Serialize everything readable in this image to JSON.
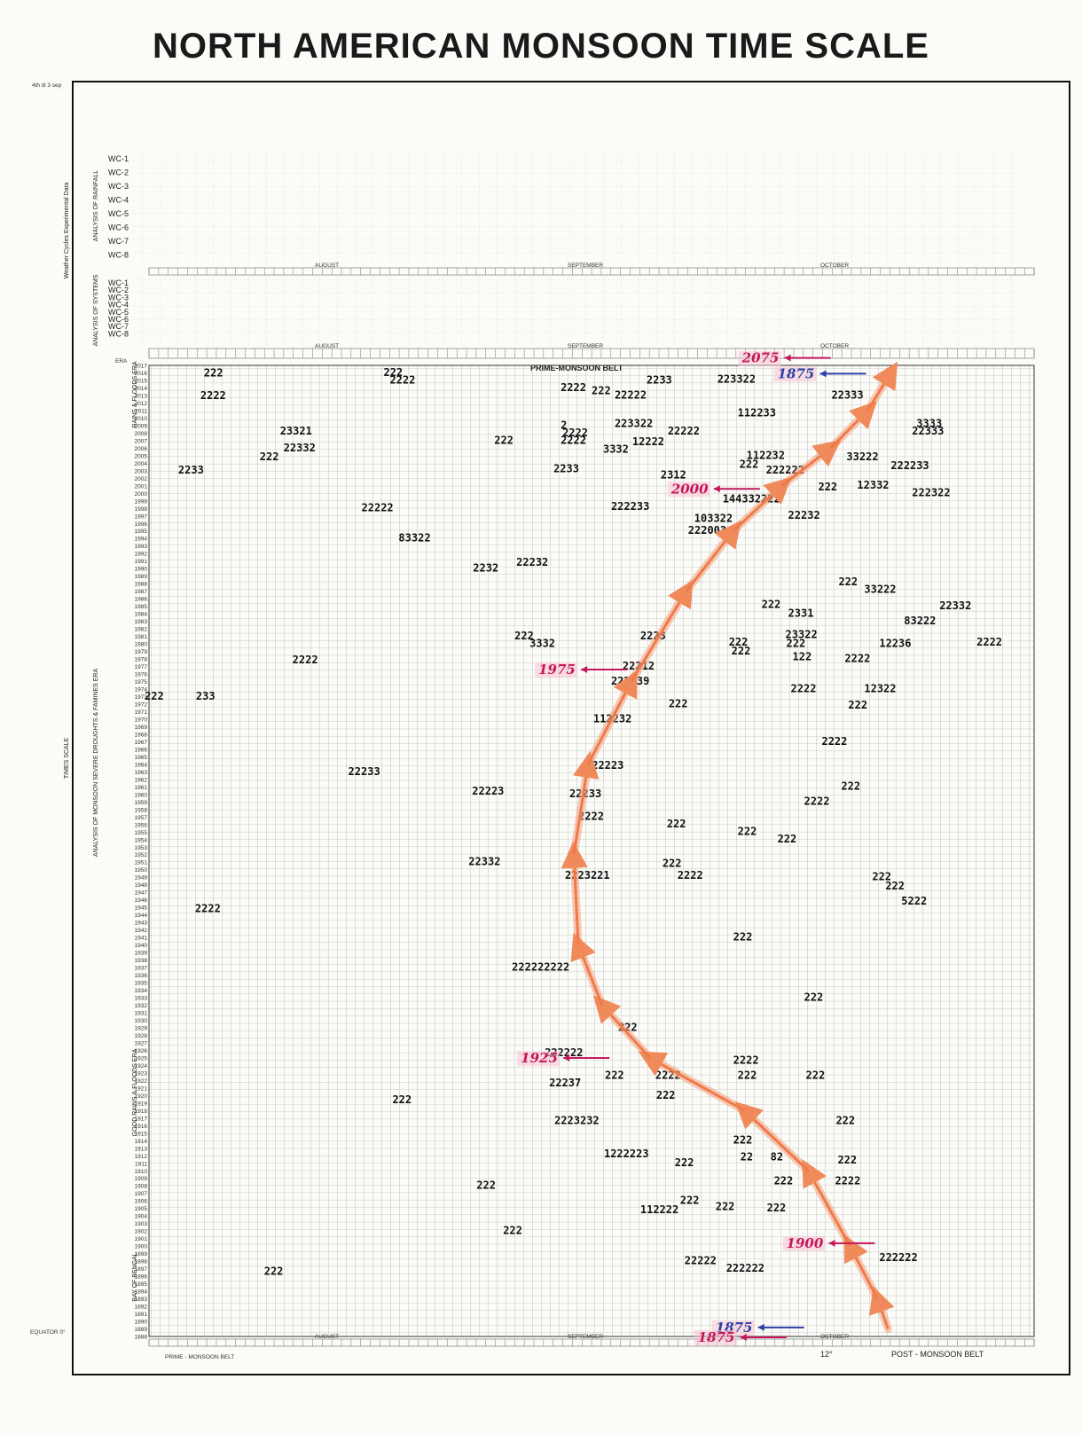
{
  "title": "NORTH AMERICAN MONSOON TIME SCALE",
  "corner_code": "4th til 3 sep",
  "axes": {
    "outer_left_label": "Weather Cycles Experimental Data",
    "times_scale_label": "TIMES SCALE",
    "rainfall_section_label": "ANALYSIS OF RAINFALL",
    "systems_section_label": "ANALYSIS OF SYSTEMS",
    "monsoon_section_label": "ANALYSIS OF MONSOON SEVERE DROUGHTS & FAMINES ERA",
    "good_rains_label": "GOOD RAINS & FLOODS ERA",
    "rains_floods_label": "RAINS & FLOODS ERA",
    "bay_label": "BAY OF BENGAL",
    "era_label": "ERA",
    "equator_label": "EQUATOR 0°",
    "weather_cycles": [
      "WC-1",
      "WC-2",
      "WC-3",
      "WC-4",
      "WC-5",
      "WC-6",
      "WC-7",
      "WC-8"
    ],
    "months": [
      "AUGUST",
      "SEPTEMBER",
      "OCTOBER"
    ],
    "bottom_left_label": "PRIME - MONSOON BELT",
    "bottom_right_label": "POST - MONSOON BELT",
    "top_band_label": "PRIME-MONSOON BELT",
    "bottom_degree": "12°"
  },
  "chart_data": {
    "type": "line",
    "title": "NORTH AMERICAN MONSOON TIME SCALE",
    "xlabel": "",
    "ylabel": "TIMES SCALE",
    "x_months": [
      "AUGUST",
      "SEPTEMBER",
      "OCTOBER"
    ],
    "ylim": [
      1888,
      2017
    ],
    "grid": true,
    "trend": [
      {
        "x": 0.835,
        "y": 1889
      },
      {
        "x": 0.823,
        "y": 1893
      },
      {
        "x": 0.792,
        "y": 1900
      },
      {
        "x": 0.745,
        "y": 1910
      },
      {
        "x": 0.673,
        "y": 1918
      },
      {
        "x": 0.566,
        "y": 1925
      },
      {
        "x": 0.512,
        "y": 1932
      },
      {
        "x": 0.485,
        "y": 1940
      },
      {
        "x": 0.48,
        "y": 1952
      },
      {
        "x": 0.496,
        "y": 1964
      },
      {
        "x": 0.545,
        "y": 1975
      },
      {
        "x": 0.607,
        "y": 1987
      },
      {
        "x": 0.66,
        "y": 1995
      },
      {
        "x": 0.715,
        "y": 2001
      },
      {
        "x": 0.77,
        "y": 2006
      },
      {
        "x": 0.812,
        "y": 2011
      },
      {
        "x": 0.838,
        "y": 2016
      }
    ],
    "year_markers": [
      {
        "label": "1875",
        "color": "#2a3fa8",
        "x": 0.64,
        "y": 1888.6
      },
      {
        "label": "1875",
        "color": "#c2185b",
        "x": 0.62,
        "y": 1887.3
      },
      {
        "label": "1900",
        "color": "#c2185b",
        "x": 0.72,
        "y": 1899.8
      },
      {
        "label": "1925",
        "color": "#c2185b",
        "x": 0.42,
        "y": 1924.4
      },
      {
        "label": "1975",
        "color": "#c2185b",
        "x": 0.44,
        "y": 1976.0
      },
      {
        "label": "2000",
        "color": "#c2185b",
        "x": 0.59,
        "y": 2000.0
      },
      {
        "label": "2075",
        "color": "#c2185b",
        "x": 0.67,
        "y": 2017.4
      },
      {
        "label": "1875",
        "color": "#2a3fa8",
        "x": 0.71,
        "y": 2015.3
      }
    ],
    "codes": [
      {
        "t": "222",
        "x": 0.062,
        "y": 2015.5
      },
      {
        "t": "2222",
        "x": 0.058,
        "y": 2012.5
      },
      {
        "t": "2222",
        "x": 0.272,
        "y": 2014.6
      },
      {
        "t": "222",
        "x": 0.265,
        "y": 2015.6
      },
      {
        "t": "2222",
        "x": 0.465,
        "y": 2013.6
      },
      {
        "t": "222",
        "x": 0.5,
        "y": 2013.2
      },
      {
        "t": "22222",
        "x": 0.526,
        "y": 2012.6
      },
      {
        "t": "2233",
        "x": 0.562,
        "y": 2014.6
      },
      {
        "t": "223322",
        "x": 0.642,
        "y": 2014.7
      },
      {
        "t": "22333",
        "x": 0.771,
        "y": 2012.6
      },
      {
        "t": "112233",
        "x": 0.665,
        "y": 2010.2
      },
      {
        "t": "223322",
        "x": 0.526,
        "y": 2008.8
      },
      {
        "t": "2",
        "x": 0.465,
        "y": 2008.6
      },
      {
        "t": "2222",
        "x": 0.467,
        "y": 2007.6
      },
      {
        "t": "2222",
        "x": 0.465,
        "y": 2006.6
      },
      {
        "t": "22222",
        "x": 0.586,
        "y": 2007.8
      },
      {
        "t": "12222",
        "x": 0.546,
        "y": 2006.4
      },
      {
        "t": "3332",
        "x": 0.513,
        "y": 2005.4
      },
      {
        "t": "23321",
        "x": 0.148,
        "y": 2007.8
      },
      {
        "t": "22332",
        "x": 0.152,
        "y": 2005.6
      },
      {
        "t": "222",
        "x": 0.125,
        "y": 2004.4
      },
      {
        "t": "222",
        "x": 0.39,
        "y": 2006.6
      },
      {
        "t": "2233",
        "x": 0.033,
        "y": 2002.6
      },
      {
        "t": "2233",
        "x": 0.457,
        "y": 2002.8
      },
      {
        "t": "3333",
        "x": 0.867,
        "y": 2008.8
      },
      {
        "t": "22333",
        "x": 0.862,
        "y": 2007.8
      },
      {
        "t": "112232",
        "x": 0.675,
        "y": 2004.6
      },
      {
        "t": "33222",
        "x": 0.788,
        "y": 2004.4
      },
      {
        "t": "222",
        "x": 0.667,
        "y": 2003.4
      },
      {
        "t": "222222",
        "x": 0.697,
        "y": 2002.6
      },
      {
        "t": "222233",
        "x": 0.838,
        "y": 2003.2
      },
      {
        "t": "2312",
        "x": 0.578,
        "y": 2002.0
      },
      {
        "t": "222",
        "x": 0.756,
        "y": 2000.4
      },
      {
        "t": "12332",
        "x": 0.8,
        "y": 2000.6
      },
      {
        "t": "222322",
        "x": 0.862,
        "y": 1999.6
      },
      {
        "t": "144332222",
        "x": 0.648,
        "y": 1998.8
      },
      {
        "t": "222233",
        "x": 0.522,
        "y": 1997.8
      },
      {
        "t": "22222",
        "x": 0.24,
        "y": 1997.6
      },
      {
        "t": "103322",
        "x": 0.616,
        "y": 1996.2
      },
      {
        "t": "222003",
        "x": 0.609,
        "y": 1994.6
      },
      {
        "t": "22232",
        "x": 0.722,
        "y": 1996.6
      },
      {
        "t": "83322",
        "x": 0.282,
        "y": 1993.6
      },
      {
        "t": "22232",
        "x": 0.415,
        "y": 1990.4
      },
      {
        "t": "2232",
        "x": 0.366,
        "y": 1989.6
      },
      {
        "t": "222",
        "x": 0.779,
        "y": 1987.8
      },
      {
        "t": "33222",
        "x": 0.808,
        "y": 1986.8
      },
      {
        "t": "22332",
        "x": 0.893,
        "y": 1984.6
      },
      {
        "t": "222",
        "x": 0.692,
        "y": 1984.8
      },
      {
        "t": "2331",
        "x": 0.722,
        "y": 1983.6
      },
      {
        "t": "83222",
        "x": 0.853,
        "y": 1982.6
      },
      {
        "t": "222",
        "x": 0.413,
        "y": 1980.6
      },
      {
        "t": "3332",
        "x": 0.43,
        "y": 1979.6
      },
      {
        "t": "2223",
        "x": 0.555,
        "y": 1980.6
      },
      {
        "t": "23322",
        "x": 0.719,
        "y": 1980.8
      },
      {
        "t": "222",
        "x": 0.655,
        "y": 1979.8
      },
      {
        "t": "222",
        "x": 0.72,
        "y": 1979.6
      },
      {
        "t": "12236",
        "x": 0.825,
        "y": 1979.6
      },
      {
        "t": "2222",
        "x": 0.935,
        "y": 1979.8
      },
      {
        "t": "222",
        "x": 0.658,
        "y": 1978.6
      },
      {
        "t": "122",
        "x": 0.727,
        "y": 1977.8
      },
      {
        "t": "2222",
        "x": 0.786,
        "y": 1977.6
      },
      {
        "t": "2222",
        "x": 0.162,
        "y": 1977.4
      },
      {
        "t": "22212",
        "x": 0.535,
        "y": 1976.6
      },
      {
        "t": "222239",
        "x": 0.522,
        "y": 1974.6
      },
      {
        "t": "222",
        "x": -0.005,
        "y": 1972.6
      },
      {
        "t": "233",
        "x": 0.053,
        "y": 1972.6
      },
      {
        "t": "2222",
        "x": 0.725,
        "y": 1973.6
      },
      {
        "t": "12322",
        "x": 0.808,
        "y": 1973.6
      },
      {
        "t": "222",
        "x": 0.587,
        "y": 1971.6
      },
      {
        "t": "222",
        "x": 0.79,
        "y": 1971.4
      },
      {
        "t": "112232",
        "x": 0.502,
        "y": 1969.6
      },
      {
        "t": "2222",
        "x": 0.76,
        "y": 1966.6
      },
      {
        "t": "122223",
        "x": 0.493,
        "y": 1963.4
      },
      {
        "t": "22233",
        "x": 0.225,
        "y": 1962.6
      },
      {
        "t": "22223",
        "x": 0.365,
        "y": 1960.0
      },
      {
        "t": "22233",
        "x": 0.475,
        "y": 1959.6
      },
      {
        "t": "222",
        "x": 0.782,
        "y": 1960.6
      },
      {
        "t": "2222",
        "x": 0.485,
        "y": 1956.6
      },
      {
        "t": "2222",
        "x": 0.74,
        "y": 1958.6
      },
      {
        "t": "222",
        "x": 0.585,
        "y": 1955.6
      },
      {
        "t": "222",
        "x": 0.665,
        "y": 1954.6
      },
      {
        "t": "222",
        "x": 0.71,
        "y": 1953.6
      },
      {
        "t": "22332",
        "x": 0.361,
        "y": 1950.6
      },
      {
        "t": "2223221",
        "x": 0.47,
        "y": 1948.8
      },
      {
        "t": "222",
        "x": 0.58,
        "y": 1950.4
      },
      {
        "t": "2222",
        "x": 0.597,
        "y": 1948.8
      },
      {
        "t": "222",
        "x": 0.817,
        "y": 1948.6
      },
      {
        "t": "222",
        "x": 0.832,
        "y": 1947.4
      },
      {
        "t": "5222",
        "x": 0.85,
        "y": 1945.4
      },
      {
        "t": "2222",
        "x": 0.052,
        "y": 1944.4
      },
      {
        "t": "222",
        "x": 0.66,
        "y": 1940.6
      },
      {
        "t": "222222222",
        "x": 0.41,
        "y": 1936.6
      },
      {
        "t": "222",
        "x": 0.74,
        "y": 1932.6
      },
      {
        "t": "222",
        "x": 0.53,
        "y": 1928.6
      },
      {
        "t": "222222",
        "x": 0.447,
        "y": 1925.2
      },
      {
        "t": "2222",
        "x": 0.66,
        "y": 1924.2
      },
      {
        "t": "22237",
        "x": 0.452,
        "y": 1921.2
      },
      {
        "t": "222",
        "x": 0.515,
        "y": 1922.2
      },
      {
        "t": "2222",
        "x": 0.572,
        "y": 1922.2
      },
      {
        "t": "222",
        "x": 0.665,
        "y": 1922.2
      },
      {
        "t": "222",
        "x": 0.742,
        "y": 1922.2
      },
      {
        "t": "222",
        "x": 0.275,
        "y": 1919.0
      },
      {
        "t": "222",
        "x": 0.573,
        "y": 1919.6
      },
      {
        "t": "2223232",
        "x": 0.458,
        "y": 1916.2
      },
      {
        "t": "222",
        "x": 0.776,
        "y": 1916.2
      },
      {
        "t": "222",
        "x": 0.66,
        "y": 1913.6
      },
      {
        "t": "1222223",
        "x": 0.514,
        "y": 1911.8
      },
      {
        "t": "222",
        "x": 0.594,
        "y": 1910.6
      },
      {
        "t": "22",
        "x": 0.668,
        "y": 1911.4
      },
      {
        "t": "82",
        "x": 0.702,
        "y": 1911.4
      },
      {
        "t": "222",
        "x": 0.778,
        "y": 1911.0
      },
      {
        "t": "222",
        "x": 0.37,
        "y": 1907.6
      },
      {
        "t": "222",
        "x": 0.706,
        "y": 1908.2
      },
      {
        "t": "2222",
        "x": 0.775,
        "y": 1908.2
      },
      {
        "t": "222",
        "x": 0.6,
        "y": 1905.6
      },
      {
        "t": "222",
        "x": 0.64,
        "y": 1904.8
      },
      {
        "t": "222",
        "x": 0.698,
        "y": 1904.6
      },
      {
        "t": "112222",
        "x": 0.555,
        "y": 1904.4
      },
      {
        "t": "222",
        "x": 0.4,
        "y": 1901.6
      },
      {
        "t": "22222",
        "x": 0.605,
        "y": 1897.6
      },
      {
        "t": "222222",
        "x": 0.652,
        "y": 1896.6
      },
      {
        "t": "222222",
        "x": 0.825,
        "y": 1898.0
      },
      {
        "t": "222",
        "x": 0.13,
        "y": 1896.2
      }
    ]
  }
}
